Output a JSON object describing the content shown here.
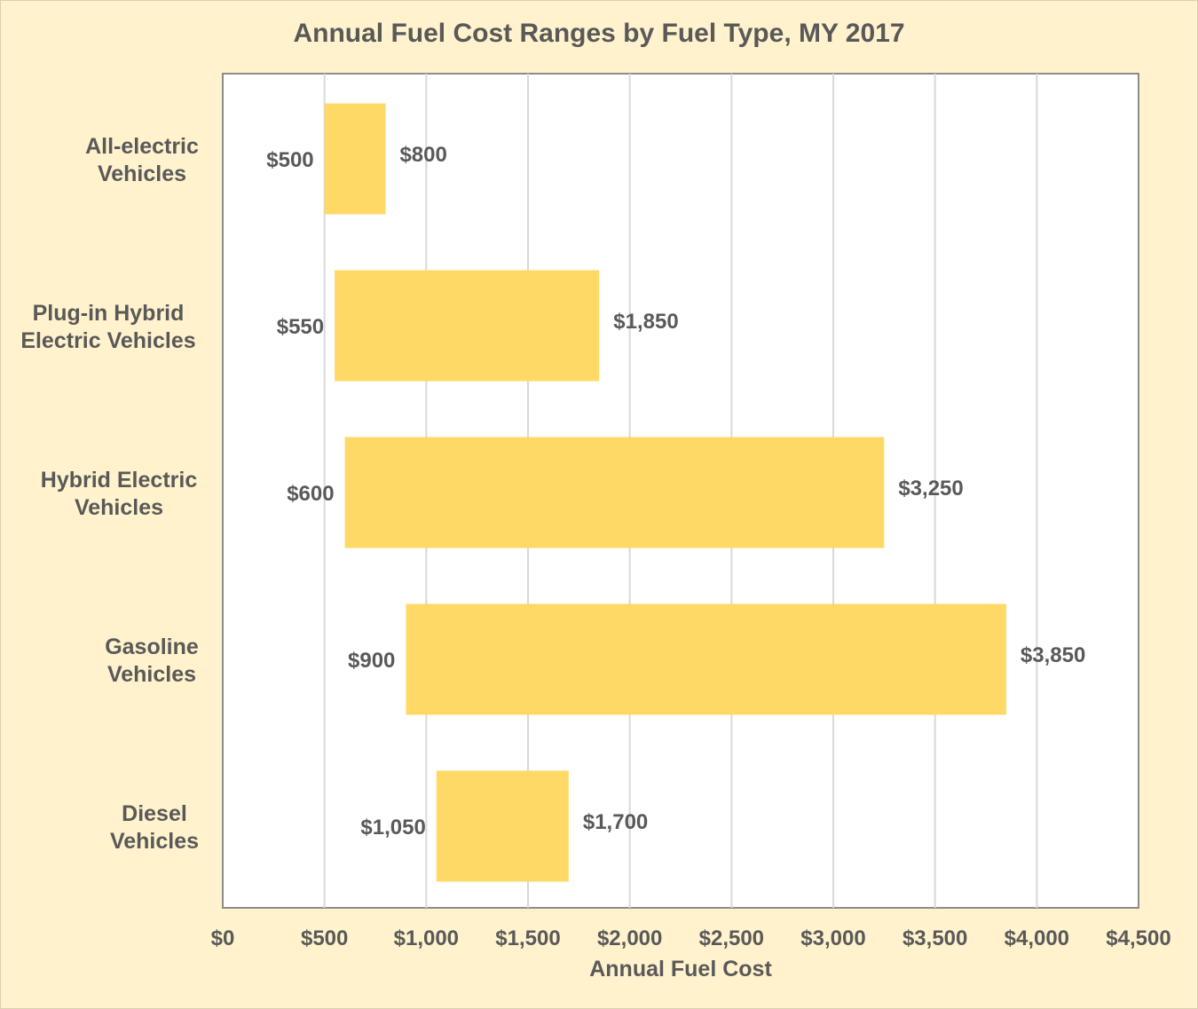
{
  "chart_data": {
    "type": "bar",
    "orientation": "horizontal",
    "title": "Annual Fuel Cost Ranges by Fuel Type, MY 2017",
    "xlabel": "Annual Fuel Cost",
    "ylabel": "",
    "xlim": [
      0,
      4500
    ],
    "x_ticks": [
      0,
      500,
      1000,
      1500,
      2000,
      2500,
      3000,
      3500,
      4000,
      4500
    ],
    "x_tick_labels": [
      "$0",
      "$500",
      "$1,000",
      "$1,500",
      "$2,000",
      "$2,500",
      "$3,000",
      "$3,500",
      "$4,000",
      "$4,500"
    ],
    "grid": true,
    "bar_color": "#FFD966",
    "categories": [
      [
        "All-electric",
        "Vehicles"
      ],
      [
        "Plug-in Hybrid",
        "Electric Vehicles"
      ],
      [
        "Hybrid Electric",
        "Vehicles"
      ],
      [
        "Gasoline",
        "Vehicles"
      ],
      [
        "Diesel",
        "Vehicles"
      ]
    ],
    "ranges": [
      {
        "low": 500,
        "high": 800,
        "low_label": "$500",
        "high_label": "$800"
      },
      {
        "low": 550,
        "high": 1850,
        "low_label": "$550",
        "high_label": "$1,850"
      },
      {
        "low": 600,
        "high": 3250,
        "low_label": "$600",
        "high_label": "$3,250"
      },
      {
        "low": 900,
        "high": 3850,
        "low_label": "$900",
        "high_label": "$3,850"
      },
      {
        "low": 1050,
        "high": 1700,
        "low_label": "$1,050",
        "high_label": "$1,700"
      }
    ]
  }
}
